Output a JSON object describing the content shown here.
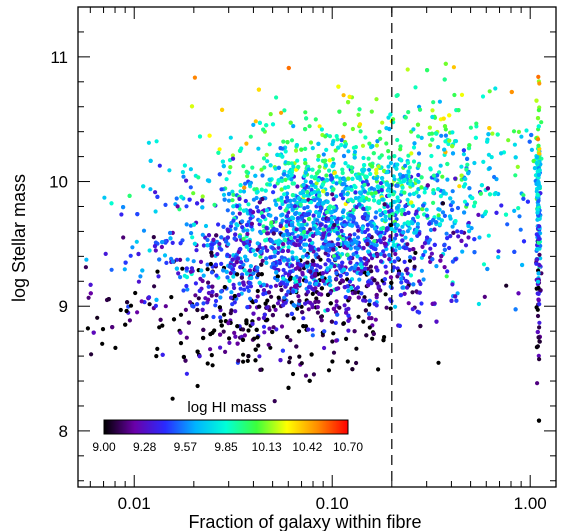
{
  "chart_data": {
    "type": "scatter",
    "title": "",
    "xlabel": "Fraction of galaxy within fibre",
    "ylabel": "log Stellar mass",
    "x_scale": "log",
    "xlim": [
      0.0052,
      1.35
    ],
    "ylim": [
      7.55,
      11.4
    ],
    "x_ticks": [
      0.01,
      0.1,
      1.0
    ],
    "x_tick_labels": [
      "0.01",
      "0.10",
      "1.00"
    ],
    "y_ticks": [
      8,
      9,
      10,
      11
    ],
    "y_tick_labels": [
      "8",
      "9",
      "10",
      "11"
    ],
    "grid": false,
    "reference_line": {
      "x": 0.2,
      "style": "dashed"
    },
    "colorbar": {
      "label": "log HI mass",
      "range": [
        9.0,
        10.7
      ],
      "tick_labels": [
        "9.00",
        "9.28",
        "9.57",
        "9.85",
        "10.13",
        "10.42",
        "10.70"
      ],
      "colormap": "rainbow",
      "colors": [
        "#000000",
        "#6a00a8",
        "#2a2aff",
        "#00b4ff",
        "#00ffd8",
        "#3cff3c",
        "#ffff00",
        "#ff8c00",
        "#ff0000"
      ]
    },
    "points_note_sample": {
      "count": 3500,
      "cluster": {
        "x_median": 0.09,
        "y_mean": 9.6,
        "y_sd": 0.42
      },
      "fibre_edge_x": 1.1
    }
  }
}
